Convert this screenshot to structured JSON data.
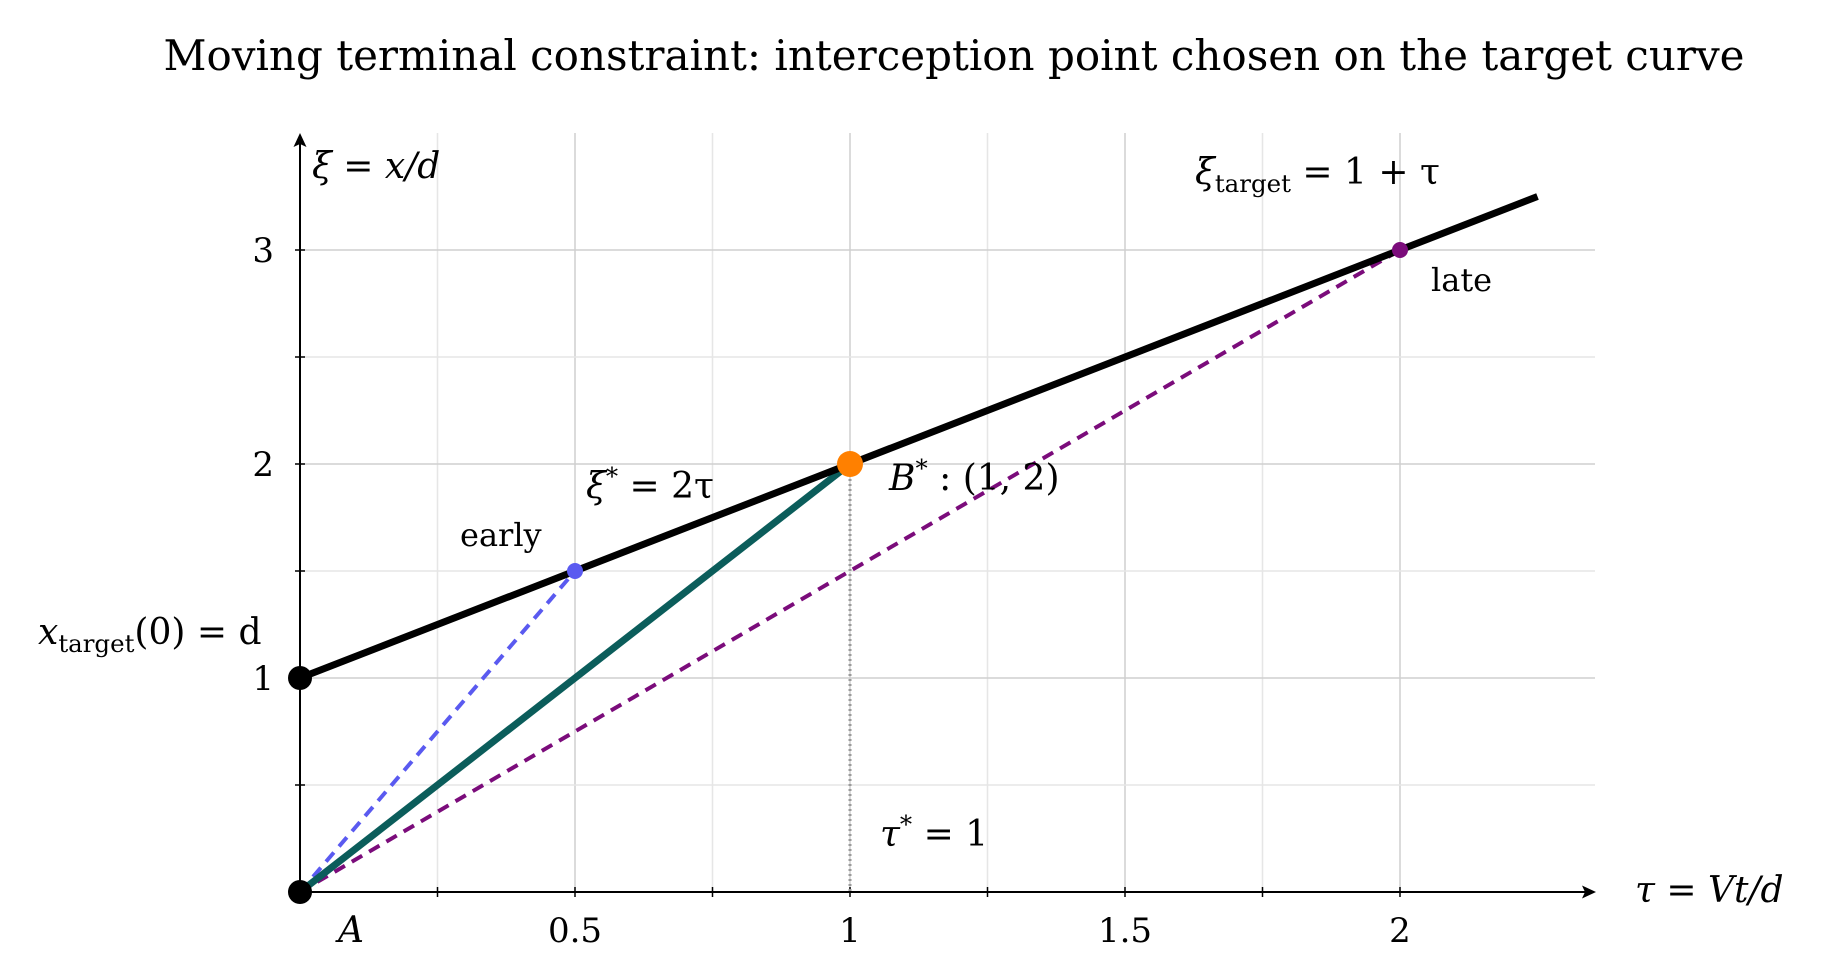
{
  "chart_data": {
    "type": "line",
    "title": "Moving terminal constraint: interception point chosen on the target curve",
    "xlabel": "τ = Vt/d",
    "ylabel": "ξ = x/d",
    "xlim": [
      0,
      2.35
    ],
    "ylim": [
      0,
      3.5
    ],
    "grid": true,
    "x_ticks": [
      0.5,
      1,
      1.5,
      2
    ],
    "x_tick_labels": [
      "0.5",
      "1",
      "1.5",
      "2"
    ],
    "y_ticks": [
      1,
      2,
      3
    ],
    "y_tick_labels": [
      "1",
      "2",
      "3"
    ],
    "x_minor_ticks": [
      0.25,
      0.75,
      1.25,
      1.75
    ],
    "y_minor_ticks": [
      0.5,
      1.5,
      2.5
    ],
    "colors": {
      "target": "#000000",
      "optimal": "#0b5d5b",
      "early": "#5a5af0",
      "late": "#7b0c7b",
      "optimum_point": "#ff8000",
      "vertical_marker": "#9a9a9a",
      "grid": "#cfcfcf"
    },
    "series": [
      {
        "name": "ξ_target = 1 + τ",
        "x": [
          0,
          2.25
        ],
        "y": [
          1,
          3.25
        ]
      },
      {
        "name": "ξ* = 2τ",
        "x": [
          0,
          1
        ],
        "y": [
          0,
          2
        ]
      },
      {
        "name": "early",
        "x": [
          0,
          0.5
        ],
        "y": [
          0,
          1.5
        ]
      },
      {
        "name": "late",
        "x": [
          0,
          2
        ],
        "y": [
          0,
          3
        ]
      }
    ],
    "annotations": {
      "target_curve_label": {
        "base": "ξ",
        "sub": "target",
        "rest": " = 1 + τ"
      },
      "optimal_path_label": {
        "base": "ξ",
        "sup": "*",
        "rest": " = 2τ"
      },
      "optimum_point_label": {
        "base": "B",
        "sup": "*",
        "rest": " : (1, 2)"
      },
      "tau_star_label": {
        "base": "τ",
        "sup": "*",
        "rest": " = 1"
      },
      "initial_target_label": {
        "base": "x",
        "sub": "target",
        "rest": "(0) = d"
      },
      "origin_label": "A",
      "early_label": "early",
      "late_label": "late"
    },
    "points": {
      "origin": [
        0,
        0
      ],
      "target_start": [
        0,
        1
      ],
      "early": [
        0.5,
        1.5
      ],
      "optimum": [
        1,
        2
      ],
      "late": [
        2,
        3
      ]
    }
  }
}
